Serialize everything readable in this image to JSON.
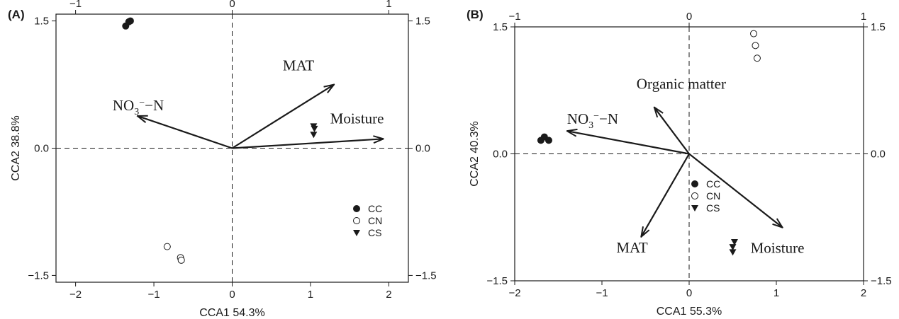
{
  "chart_data": [
    {
      "type": "scatter",
      "panel_label": "(A)",
      "xlabel": "CCA1 54.3%",
      "ylabel": "CCA2 38.8%",
      "xlim": [
        -2.25,
        2.25
      ],
      "ylim": [
        -1.58,
        1.58
      ],
      "x_ticks": [
        "−2",
        "−1",
        "0",
        "1",
        "2"
      ],
      "y_ticks": [
        "−1.5",
        "0.0",
        "1.5"
      ],
      "top_ticks": [
        "−1",
        "0",
        "1"
      ],
      "right_ticks": [
        "1.5",
        "0.0",
        "−1.5"
      ],
      "top_scale": 2,
      "right_scale": 1,
      "series": [
        {
          "name": "CC",
          "marker": "filled-circle",
          "points": [
            [
              -1.36,
              1.44
            ],
            [
              -1.32,
              1.49
            ],
            [
              -1.3,
              1.5
            ]
          ]
        },
        {
          "name": "CN",
          "marker": "open-circle",
          "points": [
            [
              -0.83,
              -1.16
            ],
            [
              -0.66,
              -1.29
            ],
            [
              -0.65,
              -1.32
            ]
          ]
        },
        {
          "name": "CS",
          "marker": "triangle-down",
          "points": [
            [
              1.04,
              0.26
            ],
            [
              1.05,
              0.23
            ],
            [
              1.04,
              0.16
            ]
          ]
        }
      ],
      "vectors": [
        {
          "label_main": "NO",
          "label_sub": "3",
          "label_sup": "−",
          "label_rest": "−N",
          "x": -1.21,
          "y": 0.38
        },
        {
          "label_main": "MAT",
          "x": 1.3,
          "y": 0.75
        },
        {
          "label_main": "Moisture",
          "x": 1.93,
          "y": 0.11
        }
      ],
      "legend": [
        "CC",
        "CN",
        "CS"
      ],
      "legend_position": "bottom-right"
    },
    {
      "type": "scatter",
      "panel_label": "(B)",
      "xlabel": "CCA1 55.3%",
      "ylabel": "CCA2 40.3%",
      "xlim": [
        -2.0,
        2.0
      ],
      "ylim": [
        -1.5,
        1.5
      ],
      "x_ticks": [
        "−2",
        "−1",
        "0",
        "1",
        "2"
      ],
      "y_ticks": [
        "−1.5",
        "0.0",
        "1.5"
      ],
      "top_ticks": [
        "−1",
        "0",
        "1"
      ],
      "right_ticks": [
        "1.5",
        "0.0",
        "−1.5"
      ],
      "top_scale": 2,
      "right_scale": 1,
      "series": [
        {
          "name": "CC",
          "marker": "filled-circle",
          "points": [
            [
              -1.7,
              0.16
            ],
            [
              -1.66,
              0.2
            ],
            [
              -1.61,
              0.16
            ]
          ]
        },
        {
          "name": "CN",
          "marker": "open-circle",
          "points": [
            [
              0.74,
              1.42
            ],
            [
              0.76,
              1.28
            ],
            [
              0.78,
              1.13
            ]
          ]
        },
        {
          "name": "CS",
          "marker": "triangle-down",
          "points": [
            [
              0.52,
              -1.04
            ],
            [
              0.5,
              -1.1
            ],
            [
              0.5,
              -1.16
            ]
          ]
        }
      ],
      "vectors": [
        {
          "label_main": "NO",
          "label_sub": "3",
          "label_sup": "−",
          "label_rest": "−N",
          "x": -1.4,
          "y": 0.27
        },
        {
          "label_main": "Organic matter",
          "x": -0.4,
          "y": 0.55
        },
        {
          "label_main": "MAT",
          "x": -0.55,
          "y": -0.98
        },
        {
          "label_main": "Moisture",
          "x": 1.07,
          "y": -0.87
        }
      ],
      "legend": [
        "CC",
        "CN",
        "CS"
      ],
      "legend_position": "right"
    }
  ]
}
